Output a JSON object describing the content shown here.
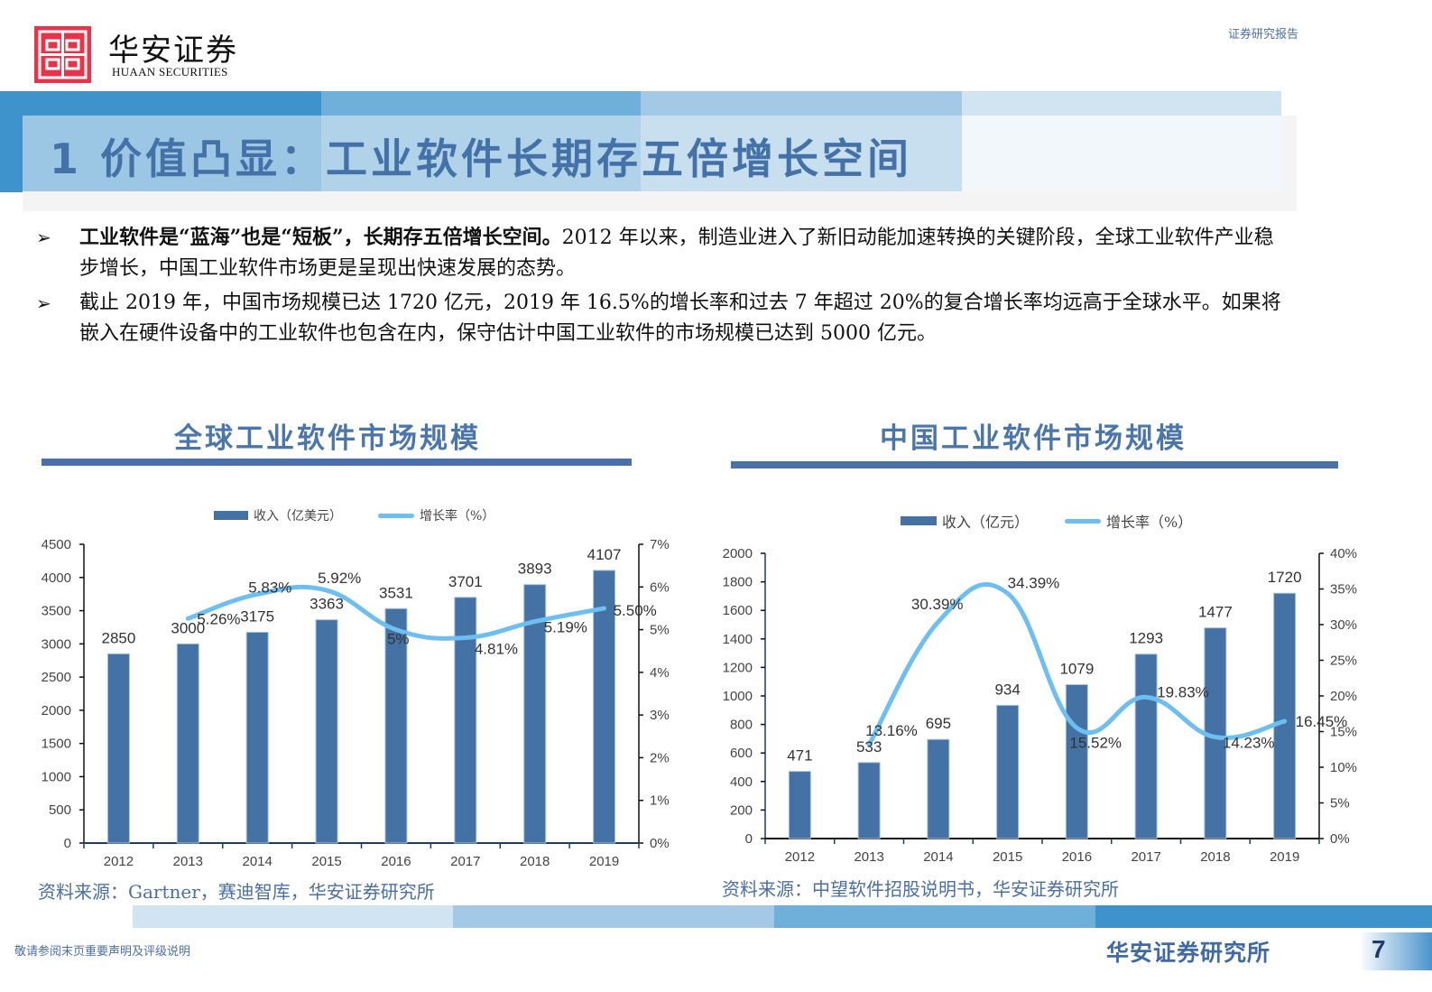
{
  "header": {
    "brand_cn": "华安证券",
    "brand_en": "HUAAN SECURITIES",
    "report_type": "证券研究报告"
  },
  "page_title": "1 价值凸显：工业软件长期存五倍增长空间",
  "bullets": [
    {
      "bold": "工业软件是“蓝海”也是“短板”，长期存五倍增长空间。",
      "text": "2012 年以来，制造业进入了新旧动能加速转换的关键阶段，全球工业软件产业稳步增长，中国工业软件市场更是呈现出快速发展的态势。"
    },
    {
      "bold": "",
      "text": "截止 2019 年，中国市场规模已达 1720 亿元，2019 年 16.5%的增长率和过去 7 年超过 20%的复合增长率均远高于全球水平。如果将嵌入在硬件设备中的工业软件也包含在内，保守估计中国工业软件的市场规模已达到 5000 亿元。"
    }
  ],
  "colors": {
    "bar": "#4472a4",
    "line": "#6cbff0",
    "title_blue": "#4472a8",
    "brand_red": "#e8344a"
  },
  "chart_data": [
    {
      "type": "bar+line",
      "title": "全球工业软件市场规模",
      "categories": [
        "2012",
        "2013",
        "2014",
        "2015",
        "2016",
        "2017",
        "2018",
        "2019"
      ],
      "series": [
        {
          "name": "收入（亿美元）",
          "type": "bar",
          "axis": "left",
          "values": [
            2850,
            3000,
            3175,
            3363,
            3531,
            3701,
            3893,
            4107
          ],
          "labels": [
            "2850",
            "3000",
            "3175",
            "3363",
            "3531",
            "3701",
            "3893",
            "4107"
          ]
        },
        {
          "name": "增长率（%）",
          "type": "line",
          "axis": "right",
          "values": [
            null,
            5.26,
            5.83,
            5.92,
            5.0,
            4.81,
            5.19,
            5.5
          ],
          "labels": [
            "",
            "5.26%",
            "5.83%",
            "5.92%",
            "5%",
            "4.81%",
            "5.19%",
            "5.50%"
          ]
        }
      ],
      "y_left": {
        "min": 0,
        "max": 4500,
        "ticks": [
          "0",
          "500",
          "1000",
          "1500",
          "2000",
          "2500",
          "3000",
          "3500",
          "4000",
          "4500"
        ]
      },
      "y_right": {
        "min": 0,
        "max": 7,
        "ticks": [
          "0%",
          "1%",
          "2%",
          "3%",
          "4%",
          "5%",
          "6%",
          "7%"
        ]
      },
      "legend": [
        "收入（亿美元）",
        "增长率（%）"
      ],
      "legend_position": "top",
      "source": "资料来源：Gartner，赛迪智库，华安证券研究所"
    },
    {
      "type": "bar+line",
      "title": "中国工业软件市场规模",
      "categories": [
        "2012",
        "2013",
        "2014",
        "2015",
        "2016",
        "2017",
        "2018",
        "2019"
      ],
      "series": [
        {
          "name": "收入（亿元）",
          "type": "bar",
          "axis": "left",
          "values": [
            471,
            533,
            695,
            934,
            1079,
            1293,
            1477,
            1720
          ],
          "labels": [
            "471",
            "533",
            "695",
            "934",
            "1079",
            "1293",
            "1477",
            "1720"
          ]
        },
        {
          "name": "增长率（%）",
          "type": "line",
          "axis": "right",
          "values": [
            null,
            13.16,
            30.39,
            34.39,
            15.52,
            19.83,
            14.23,
            16.45
          ],
          "labels": [
            "",
            "13.16%",
            "30.39%",
            "34.39%",
            "15.52%",
            "19.83%",
            "14.23%",
            "16.45%"
          ]
        }
      ],
      "y_left": {
        "min": 0,
        "max": 2000,
        "ticks": [
          "0",
          "200",
          "400",
          "600",
          "800",
          "1000",
          "1200",
          "1400",
          "1600",
          "1800",
          "2000"
        ]
      },
      "y_right": {
        "min": 0,
        "max": 40,
        "ticks": [
          "0%",
          "5%",
          "10%",
          "15%",
          "20%",
          "25%",
          "30%",
          "35%",
          "40%"
        ]
      },
      "legend": [
        "收入（亿元）",
        "增长率（%）"
      ],
      "legend_position": "top",
      "source": "资料来源：中望软件招股说明书，华安证券研究所"
    }
  ],
  "footer": {
    "disclaimer": "敬请参阅末页重要声明及评级说明",
    "institute": "华安证券研究所",
    "page_number": "7"
  }
}
